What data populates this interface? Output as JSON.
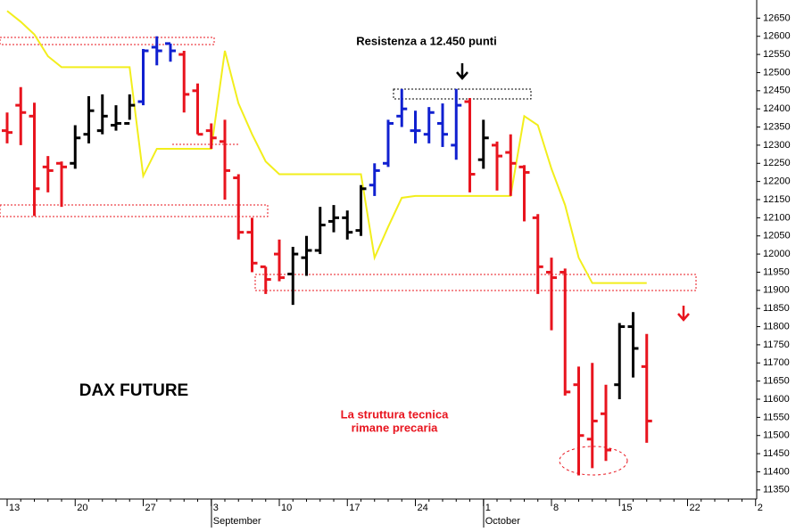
{
  "chart_data": {
    "type": "ohlc",
    "title": "DAX FUTURE",
    "annotations": [
      {
        "text": "Resistenza a 12.450 punti",
        "color": "#000000"
      },
      {
        "text": "La struttura tecnica",
        "color": "#e8141e"
      },
      {
        "text": "rimane precaria",
        "color": "#e8141e"
      }
    ],
    "categories": [
      "13",
      null,
      null,
      null,
      null,
      "20",
      null,
      null,
      null,
      null,
      "27",
      null,
      null,
      null,
      null,
      "3",
      null,
      null,
      null,
      null,
      "10",
      null,
      null,
      null,
      null,
      "17",
      null,
      null,
      null,
      null,
      "24",
      null,
      null,
      null,
      null,
      "1",
      null,
      null,
      null,
      null,
      "8",
      null,
      null,
      null,
      null,
      "15",
      null,
      null,
      null,
      null,
      "22",
      null,
      null,
      null,
      null,
      "2"
    ],
    "x_month_labels": [
      {
        "label": "September",
        "at": "3"
      },
      {
        "label": "October",
        "at": "1"
      }
    ],
    "ohlc": {
      "open": [
        12340,
        12410,
        12380,
        12240,
        12250,
        12250,
        12330,
        12340,
        12355,
        12360,
        12420,
        12570,
        12580,
        12550,
        12450,
        12340,
        12310,
        12210,
        12060,
        11965,
        12000,
        11945,
        11990,
        12010,
        12090,
        12100,
        12065,
        12190,
        12250,
        12380,
        12340,
        12330,
        12360,
        12300,
        12420,
        12260,
        12300,
        12280,
        12240,
        12100,
        11950,
        11950,
        11640,
        11490,
        11560,
        11640,
        11800,
        11690,
        null,
        null,
        null,
        null,
        null,
        null,
        null,
        null
      ],
      "high": [
        12390,
        12460,
        12417,
        12270,
        12255,
        12355,
        12435,
        12440,
        12410,
        12440,
        12565,
        12600,
        12580,
        12560,
        12470,
        12360,
        12370,
        12220,
        12100,
        11965,
        12040,
        12020,
        12050,
        12130,
        12135,
        12120,
        12190,
        12250,
        12370,
        12455,
        12395,
        12405,
        12415,
        12455,
        12430,
        12370,
        12310,
        12330,
        12245,
        12110,
        11990,
        11960,
        11690,
        11700,
        11640,
        11810,
        11840,
        11780,
        null,
        null,
        null,
        null,
        null,
        null,
        null,
        null
      ],
      "low": [
        12305,
        12300,
        12105,
        12170,
        12130,
        12235,
        12305,
        12330,
        12340,
        12370,
        12410,
        12520,
        12530,
        12390,
        12330,
        12290,
        12150,
        12040,
        11950,
        11890,
        11925,
        11860,
        11940,
        12000,
        12060,
        12040,
        12050,
        12160,
        12240,
        12350,
        12305,
        12305,
        12295,
        12260,
        12170,
        12235,
        12175,
        12160,
        12090,
        11890,
        11790,
        11610,
        11390,
        11410,
        11430,
        11600,
        11660,
        11480,
        null,
        null,
        null,
        null,
        null,
        null,
        null,
        null
      ],
      "close": [
        12335,
        12390,
        12180,
        12230,
        12240,
        12320,
        12395,
        12380,
        12360,
        12410,
        12560,
        12560,
        12560,
        12440,
        12330,
        12320,
        12230,
        12060,
        11975,
        11930,
        11935,
        12000,
        12010,
        12080,
        12100,
        12060,
        12180,
        12230,
        12360,
        12400,
        12340,
        12390,
        12330,
        12410,
        12220,
        12320,
        12270,
        12250,
        12225,
        11965,
        11935,
        11620,
        11500,
        11540,
        11460,
        11800,
        11740,
        11540,
        null,
        null,
        null,
        null,
        null,
        null,
        null,
        null
      ],
      "colors": [
        "#e8141e",
        "#e8141e",
        "#e8141e",
        "#e8141e",
        "#e8141e",
        "#000000",
        "#000000",
        "#000000",
        "#000000",
        "#000000",
        "#1020d0",
        "#1020d0",
        "#1020d0",
        "#e8141e",
        "#e8141e",
        "#e8141e",
        "#e8141e",
        "#e8141e",
        "#e8141e",
        "#e8141e",
        "#e8141e",
        "#000000",
        "#000000",
        "#000000",
        "#000000",
        "#000000",
        "#000000",
        "#1020d0",
        "#1020d0",
        "#1020d0",
        "#1020d0",
        "#1020d0",
        "#1020d0",
        "#1020d0",
        "#e8141e",
        "#000000",
        "#e8141e",
        "#e8141e",
        "#e8141e",
        "#e8141e",
        "#e8141e",
        "#e8141e",
        "#e8141e",
        "#e8141e",
        "#e8141e",
        "#000000",
        "#000000",
        "#e8141e",
        null,
        null,
        null,
        null,
        null,
        null,
        null,
        null
      ]
    },
    "line": {
      "color": "#f2ee1c",
      "values": [
        12670,
        12640,
        12605,
        12545,
        12515,
        12515,
        12515,
        12515,
        12515,
        12515,
        12215,
        12290,
        12290,
        12290,
        12290,
        12290,
        12560,
        12415,
        12330,
        12255,
        12220,
        12220,
        12220,
        12220,
        12220,
        12220,
        12220,
        11990,
        12075,
        12155,
        12160,
        12160,
        12160,
        12160,
        12160,
        12160,
        12160,
        12160,
        12380,
        12355,
        12235,
        12135,
        11990,
        11920,
        11920,
        11920,
        11920,
        11920,
        null,
        null,
        null,
        null,
        null,
        null,
        null,
        null
      ]
    },
    "ylim": [
      11325,
      12700
    ],
    "yticks": [
      11350,
      11400,
      11450,
      11500,
      11550,
      11600,
      11650,
      11700,
      11750,
      11800,
      11850,
      11900,
      11950,
      12000,
      12050,
      12100,
      12150,
      12200,
      12250,
      12300,
      12350,
      12400,
      12450,
      12500,
      12550,
      12600,
      12650
    ]
  }
}
